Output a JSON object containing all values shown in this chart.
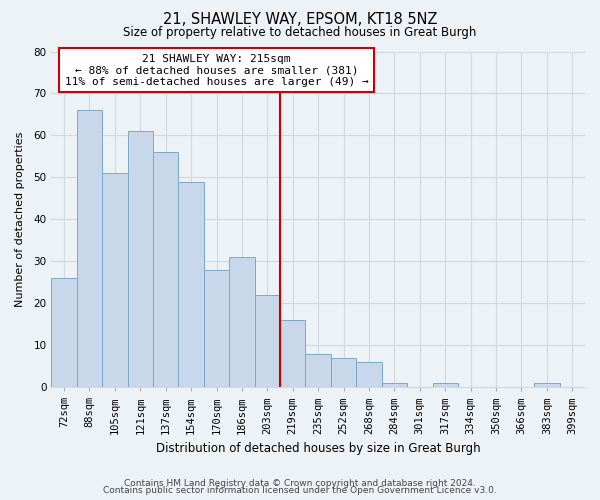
{
  "title": "21, SHAWLEY WAY, EPSOM, KT18 5NZ",
  "subtitle": "Size of property relative to detached houses in Great Burgh",
  "xlabel": "Distribution of detached houses by size in Great Burgh",
  "ylabel": "Number of detached properties",
  "footer1": "Contains HM Land Registry data © Crown copyright and database right 2024.",
  "footer2": "Contains public sector information licensed under the Open Government Licence v3.0.",
  "bin_labels": [
    "72sqm",
    "88sqm",
    "105sqm",
    "121sqm",
    "137sqm",
    "154sqm",
    "170sqm",
    "186sqm",
    "203sqm",
    "219sqm",
    "235sqm",
    "252sqm",
    "268sqm",
    "284sqm",
    "301sqm",
    "317sqm",
    "334sqm",
    "350sqm",
    "366sqm",
    "383sqm",
    "399sqm"
  ],
  "bar_heights": [
    26,
    66,
    51,
    61,
    56,
    49,
    28,
    31,
    22,
    16,
    8,
    7,
    6,
    1,
    0,
    1,
    0,
    0,
    0,
    1,
    0
  ],
  "bar_color": "#c8d8ea",
  "bar_edge_color": "#7aaac8",
  "property_line_index": 8.5,
  "property_line_label": "21 SHAWLEY WAY: 215sqm",
  "annotation_line1": "← 88% of detached houses are smaller (381)",
  "annotation_line2": "11% of semi-detached houses are larger (49) →",
  "annotation_box_color": "white",
  "annotation_box_edge": "#cc0000",
  "property_line_color": "#cc0000",
  "ylim": [
    0,
    80
  ],
  "yticks": [
    0,
    10,
    20,
    30,
    40,
    50,
    60,
    70,
    80
  ],
  "grid_color": "#d0d8e0",
  "bg_color": "#edf2f7",
  "title_fontsize": 10.5,
  "subtitle_fontsize": 8.5,
  "xlabel_fontsize": 8.5,
  "ylabel_fontsize": 8.0,
  "tick_fontsize": 7.5,
  "footer_fontsize": 6.5,
  "annot_fontsize": 8.0
}
